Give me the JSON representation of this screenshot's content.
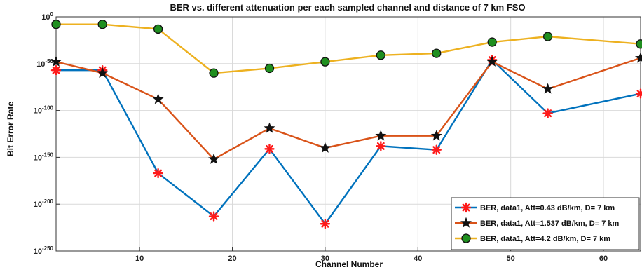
{
  "chart_data": {
    "type": "line",
    "title": "BER vs. different attenuation per each sampled channel and distance of 7 km FSO",
    "xlabel": "Channel Number",
    "ylabel": "Bit Error Rate",
    "yscale": "log",
    "xlim": [
      1,
      64
    ],
    "ylim_exponent": [
      -250,
      0
    ],
    "x_ticks": [
      10,
      20,
      30,
      40,
      50,
      60
    ],
    "y_ticks": [
      {
        "base": "10",
        "exp": "0",
        "value": 0
      },
      {
        "base": "10",
        "exp": "-50",
        "value": -50
      },
      {
        "base": "10",
        "exp": "-100",
        "value": -100
      },
      {
        "base": "10",
        "exp": "-150",
        "value": -150
      },
      {
        "base": "10",
        "exp": "-200",
        "value": -200
      },
      {
        "base": "10",
        "exp": "-250",
        "value": -250
      }
    ],
    "grid": true,
    "legend_position": "bottom-right",
    "x": [
      1,
      6,
      12,
      18,
      24,
      30,
      36,
      42,
      48,
      54,
      64
    ],
    "series": [
      {
        "name": "BER, data1, Att=0.43 dB/km, D= 7 km",
        "color": "#0072BD",
        "marker": "asterisk",
        "marker_color": "#ff1a1a",
        "log10_values": [
          -57,
          -57,
          -167,
          -213,
          -141,
          -221,
          -138,
          -142,
          -46,
          -103,
          -82
        ]
      },
      {
        "name": "BER, data1, Att=1.537 dB/km, D= 7 km",
        "color": "#D95319",
        "marker": "pentagram",
        "marker_color": "#111111",
        "log10_values": [
          -48,
          -60,
          -88,
          -152,
          -119,
          -140,
          -127,
          -127,
          -48,
          -77,
          -44
        ]
      },
      {
        "name": "BER, data1, Att=4.2 dB/km, D= 7 km",
        "color": "#EDB120",
        "marker": "circle",
        "marker_color": "#1f8f1f",
        "log10_values": [
          -8,
          -8,
          -13,
          -60,
          -55,
          -48,
          -41,
          -39,
          -27,
          -21,
          -29
        ]
      }
    ]
  }
}
